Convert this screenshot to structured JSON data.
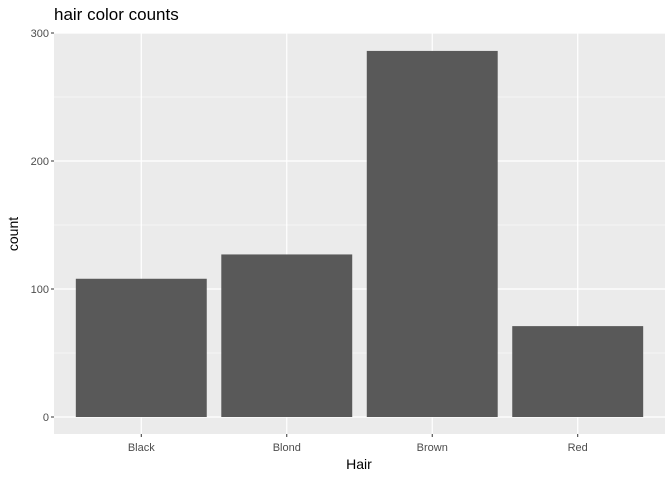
{
  "chart_data": {
    "type": "bar",
    "title": "hair color counts",
    "xlabel": "Hair",
    "ylabel": "count",
    "categories": [
      "Black",
      "Blond",
      "Brown",
      "Red"
    ],
    "values": [
      108,
      127,
      286,
      71
    ],
    "ylim": [
      0,
      300
    ],
    "yticks": [
      0,
      100,
      200,
      300
    ],
    "grid": true,
    "colors": {
      "panel_background": "#ebebeb",
      "grid_major": "#ffffff",
      "bar_fill": "#595959",
      "tick_label": "#4d4d4d",
      "text": "#000000"
    }
  }
}
